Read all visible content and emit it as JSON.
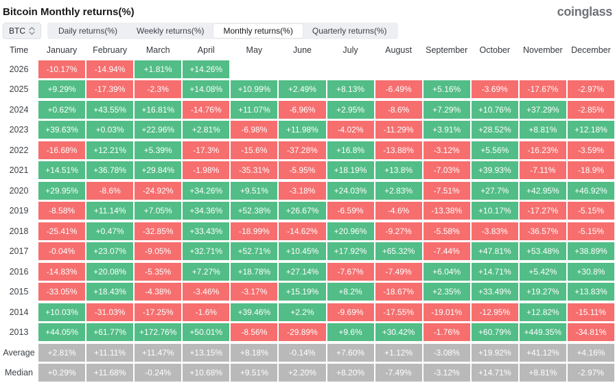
{
  "header": {
    "title": "Bitcoin Monthly returns(%)",
    "logo": "coinglass"
  },
  "controls": {
    "symbol_select": {
      "value": "BTC",
      "icon": "up-down-chevrons-icon"
    },
    "tabs": [
      {
        "label": "Daily returns(%)",
        "active": false
      },
      {
        "label": "Weekly returns(%)",
        "active": false
      },
      {
        "label": "Monthly returns(%)",
        "active": true
      },
      {
        "label": "Quarterly returns(%)",
        "active": false
      }
    ]
  },
  "colors": {
    "positive": "#52bd86",
    "negative": "#f66e6e",
    "neutral": "#b9b9b9"
  },
  "chart_data": {
    "type": "heatmap",
    "time_column_header": "Time",
    "columns": [
      "January",
      "February",
      "March",
      "April",
      "May",
      "June",
      "July",
      "August",
      "September",
      "October",
      "November",
      "December"
    ],
    "rows": [
      {
        "label": "2026",
        "neutral": false,
        "values": [
          "-10.17%",
          "-14.94%",
          "+1.81%",
          "+14.26%",
          "",
          "",
          "",
          "",
          "",
          "",
          "",
          ""
        ]
      },
      {
        "label": "2025",
        "neutral": false,
        "values": [
          "+9.29%",
          "-17.39%",
          "-2.3%",
          "+14.08%",
          "+10.99%",
          "+2.49%",
          "+8.13%",
          "-6.49%",
          "+5.16%",
          "-3.69%",
          "-17.67%",
          "-2.97%"
        ]
      },
      {
        "label": "2024",
        "neutral": false,
        "values": [
          "+0.62%",
          "+43.55%",
          "+16.81%",
          "-14.76%",
          "+11.07%",
          "-6.96%",
          "+2.95%",
          "-8.6%",
          "+7.29%",
          "+10.76%",
          "+37.29%",
          "-2.85%"
        ]
      },
      {
        "label": "2023",
        "neutral": false,
        "values": [
          "+39.63%",
          "+0.03%",
          "+22.96%",
          "+2.81%",
          "-6.98%",
          "+11.98%",
          "-4.02%",
          "-11.29%",
          "+3.91%",
          "+28.52%",
          "+8.81%",
          "+12.18%"
        ]
      },
      {
        "label": "2022",
        "neutral": false,
        "values": [
          "-16.68%",
          "+12.21%",
          "+5.39%",
          "-17.3%",
          "-15.6%",
          "-37.28%",
          "+16.8%",
          "-13.88%",
          "-3.12%",
          "+5.56%",
          "-16.23%",
          "-3.59%"
        ]
      },
      {
        "label": "2021",
        "neutral": false,
        "values": [
          "+14.51%",
          "+36.78%",
          "+29.84%",
          "-1.98%",
          "-35.31%",
          "-5.95%",
          "+18.19%",
          "+13.8%",
          "-7.03%",
          "+39.93%",
          "-7.11%",
          "-18.9%"
        ]
      },
      {
        "label": "2020",
        "neutral": false,
        "values": [
          "+29.95%",
          "-8.6%",
          "-24.92%",
          "+34.26%",
          "+9.51%",
          "-3.18%",
          "+24.03%",
          "+2.83%",
          "-7.51%",
          "+27.7%",
          "+42.95%",
          "+46.92%"
        ]
      },
      {
        "label": "2019",
        "neutral": false,
        "values": [
          "-8.58%",
          "+11.14%",
          "+7.05%",
          "+34.36%",
          "+52.38%",
          "+26.67%",
          "-6.59%",
          "-4.6%",
          "-13.38%",
          "+10.17%",
          "-17.27%",
          "-5.15%"
        ]
      },
      {
        "label": "2018",
        "neutral": false,
        "values": [
          "-25.41%",
          "+0.47%",
          "-32.85%",
          "+33.43%",
          "-18.99%",
          "-14.62%",
          "+20.96%",
          "-9.27%",
          "-5.58%",
          "-3.83%",
          "-36.57%",
          "-5.15%"
        ]
      },
      {
        "label": "2017",
        "neutral": false,
        "values": [
          "-0.04%",
          "+23.07%",
          "-9.05%",
          "+32.71%",
          "+52.71%",
          "+10.45%",
          "+17.92%",
          "+65.32%",
          "-7.44%",
          "+47.81%",
          "+53.48%",
          "+38.89%"
        ]
      },
      {
        "label": "2016",
        "neutral": false,
        "values": [
          "-14.83%",
          "+20.08%",
          "-5.35%",
          "+7.27%",
          "+18.78%",
          "+27.14%",
          "-7.67%",
          "-7.49%",
          "+6.04%",
          "+14.71%",
          "+5.42%",
          "+30.8%"
        ]
      },
      {
        "label": "2015",
        "neutral": false,
        "values": [
          "-33.05%",
          "+18.43%",
          "-4.38%",
          "-3.46%",
          "-3.17%",
          "+15.19%",
          "+8.2%",
          "-18.67%",
          "+2.35%",
          "+33.49%",
          "+19.27%",
          "+13.83%"
        ]
      },
      {
        "label": "2014",
        "neutral": false,
        "values": [
          "+10.03%",
          "-31.03%",
          "-17.25%",
          "-1.6%",
          "+39.46%",
          "+2.2%",
          "-9.69%",
          "-17.55%",
          "-19.01%",
          "-12.95%",
          "+12.82%",
          "-15.11%"
        ]
      },
      {
        "label": "2013",
        "neutral": false,
        "values": [
          "+44.05%",
          "+61.77%",
          "+172.76%",
          "+50.01%",
          "-8.56%",
          "-29.89%",
          "+9.6%",
          "+30.42%",
          "-1.76%",
          "+60.79%",
          "+449.35%",
          "-34.81%"
        ]
      },
      {
        "label": "Average",
        "neutral": true,
        "values": [
          "+2.81%",
          "+11.11%",
          "+11.47%",
          "+13.15%",
          "+8.18%",
          "-0.14%",
          "+7.60%",
          "+1.12%",
          "-3.08%",
          "+19.92%",
          "+41.12%",
          "+4.16%"
        ]
      },
      {
        "label": "Median",
        "neutral": true,
        "values": [
          "+0.29%",
          "+11.68%",
          "-0.24%",
          "+10.68%",
          "+9.51%",
          "+2.20%",
          "+8.20%",
          "-7.49%",
          "-3.12%",
          "+14.71%",
          "+8.81%",
          "-2.97%"
        ]
      }
    ]
  }
}
